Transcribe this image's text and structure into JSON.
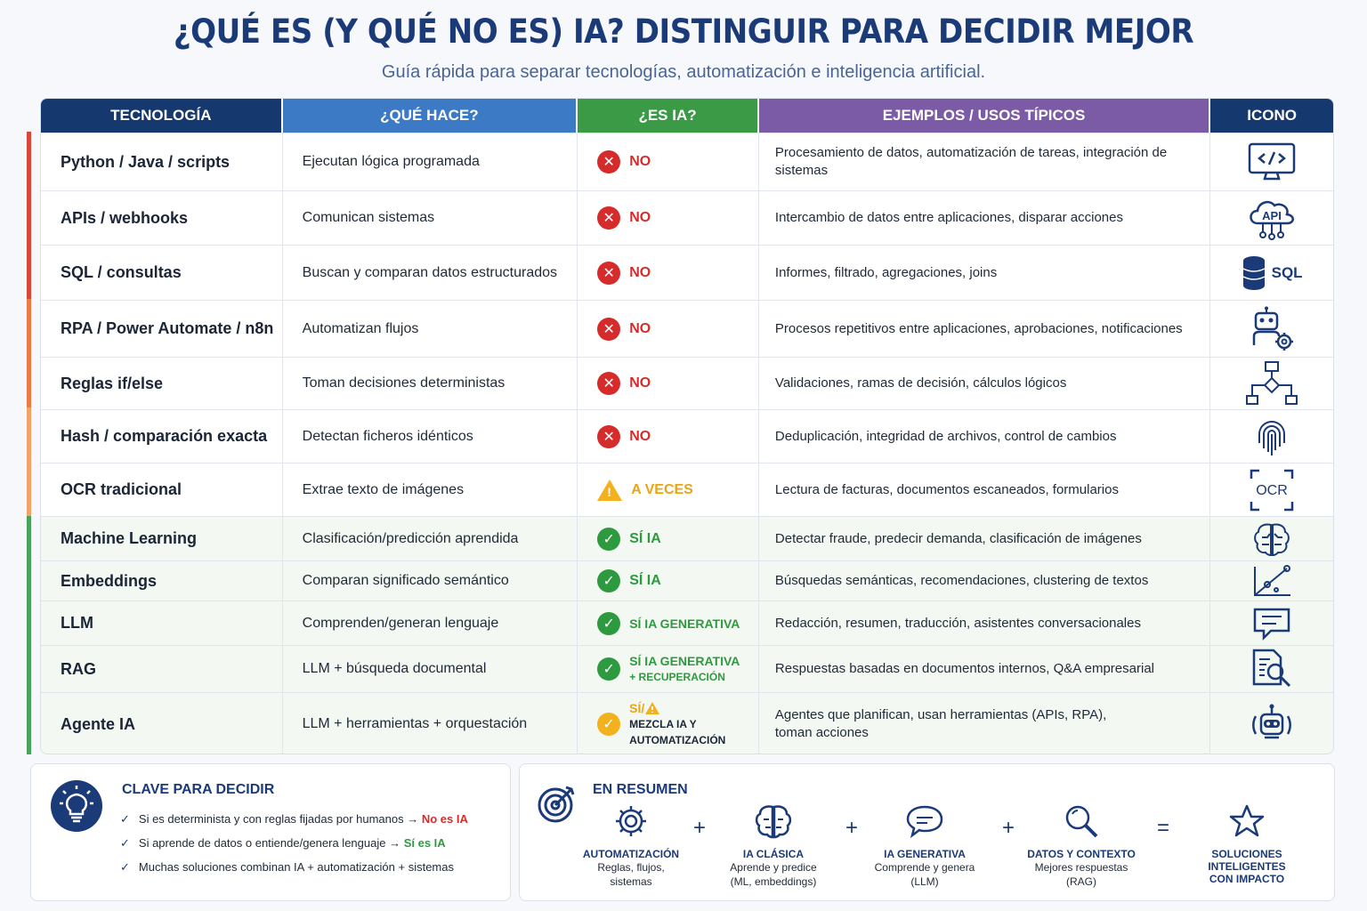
{
  "header": {
    "title": "¿QUÉ ES (Y QUÉ NO ES) IA?  DISTINGUIR PARA DECIDIR MEJOR",
    "subtitle": "Guía rápida para separar tecnologías, automatización e inteligencia artificial."
  },
  "table": {
    "columns": [
      {
        "label": "TECNOLOGÍA",
        "color": "#15396f"
      },
      {
        "label": "¿QUÉ HACE?",
        "color": "#3d7ac6"
      },
      {
        "label": "¿ES IA?",
        "color": "#3a9a46"
      },
      {
        "label": "EJEMPLOS / USOS TÍPICOS",
        "color": "#7b5aa6"
      },
      {
        "label": "ICONO",
        "color": "#15396f"
      }
    ],
    "rows": [
      {
        "tech": "Python / Java / scripts",
        "does": "Ejecutan lógica programada",
        "is_ai": "NO",
        "status": "no",
        "examples": "Procesamiento de datos, automatización de tareas, integración de sistemas",
        "icon": "code-monitor-icon"
      },
      {
        "tech": "APIs / webhooks",
        "does": "Comunican sistemas",
        "is_ai": "NO",
        "status": "no",
        "examples": "Intercambio de datos entre aplicaciones, disparar acciones",
        "icon": "api-cloud-icon",
        "icon_text": "API"
      },
      {
        "tech": "SQL / consultas",
        "does": "Buscan y comparan datos estructurados",
        "is_ai": "NO",
        "status": "no",
        "examples": "Informes, filtrado, agregaciones, joins",
        "icon": "database-icon",
        "icon_text": "SQL"
      },
      {
        "tech": "RPA / Power Automate / n8n",
        "does": "Automatizan flujos",
        "is_ai": "NO",
        "status": "no",
        "examples": "Procesos repetitivos entre aplicaciones, aprobaciones, notificaciones",
        "icon": "robot-gear-icon"
      },
      {
        "tech": "Reglas if/else",
        "does": "Toman decisiones deterministas",
        "is_ai": "NO",
        "status": "no",
        "examples": "Validaciones, ramas de decisión, cálculos lógicos",
        "icon": "flowchart-icon"
      },
      {
        "tech": "Hash / comparación exacta",
        "does": "Detectan ficheros idénticos",
        "is_ai": "NO",
        "status": "no",
        "examples": "Deduplicación, integridad de archivos, control de cambios",
        "icon": "fingerprint-icon"
      },
      {
        "tech": "OCR tradicional",
        "does": "Extrae texto de imágenes",
        "is_ai": "A VECES",
        "status": "maybe",
        "examples": "Lectura de facturas, documentos escaneados, formularios",
        "icon": "ocr-scan-icon",
        "icon_text": "OCR"
      },
      {
        "tech": "Machine Learning",
        "does": "Clasificación/predicción aprendida",
        "is_ai": "SÍ IA",
        "status": "yes",
        "examples": "Detectar fraude, predecir demanda, clasificación de imágenes",
        "icon": "brain-circuit-icon"
      },
      {
        "tech": "Embeddings",
        "does": "Comparan significado semántico",
        "is_ai": "SÍ IA",
        "status": "yes",
        "examples": "Búsquedas semánticas, recomendaciones, clustering de textos",
        "icon": "vector-space-icon"
      },
      {
        "tech": "LLM",
        "does": "Comprenden/generan lenguaje",
        "is_ai": "SÍ IA GENERATIVA",
        "status": "yes",
        "examples": "Redacción, resumen, traducción, asistentes conversacionales",
        "icon": "chat-bubble-icon"
      },
      {
        "tech": "RAG",
        "does": "LLM + búsqueda documental",
        "is_ai": "SÍ IA GENERATIVA",
        "is_ai_sub": "+ RECUPERACIÓN",
        "status": "yes",
        "examples": "Respuestas basadas en documentos internos, Q&A empresarial",
        "icon": "document-search-icon"
      },
      {
        "tech": "Agente IA",
        "does": "LLM + herramientas + orquestación",
        "is_ai": "SÍ/",
        "is_ai_sub": "MEZCLA IA Y AUTOMATIZACIÓN",
        "status": "mixed",
        "examples": "Agentes que planifican, usan herramientas (APIs, RPA), toman acciones",
        "icon": "robot-head-icon"
      }
    ]
  },
  "key_panel": {
    "title": "CLAVE PARA DECIDIR",
    "items": [
      {
        "text": "Si es determinista y con reglas fijadas por humanos → ",
        "highlight": "No es IA"
      },
      {
        "text": "Si aprende de datos o entiende/genera lenguaje → ",
        "highlight": "Sí es IA"
      },
      {
        "text": "Muchas soluciones combinan IA + automatización + sistemas",
        "highlight": ""
      }
    ]
  },
  "summary_panel": {
    "title": "EN RESUMEN",
    "items": [
      {
        "title": "AUTOMATIZACIÓN",
        "desc1": "Reglas, flujos,",
        "desc2": "sistemas",
        "icon": "gear-icon"
      },
      {
        "title": "IA CLÁSICA",
        "desc1": "Aprende y predice",
        "desc2": "(ML, embeddings)",
        "icon": "brain-icon"
      },
      {
        "title": "IA GENERATIVA",
        "desc1": "Comprende y genera",
        "desc2": "(LLM)",
        "icon": "chat-icon"
      },
      {
        "title": "DATOS Y CONTEXTO",
        "desc1": "Mejores respuestas",
        "desc2": "(RAG)",
        "icon": "magnifier-icon"
      },
      {
        "title": "SOLUCIONES",
        "desc1": "INTELIGENTES",
        "desc2": "CON IMPACTO",
        "icon": "star-icon"
      }
    ],
    "operators": [
      "+",
      "+",
      "+",
      "="
    ]
  }
}
